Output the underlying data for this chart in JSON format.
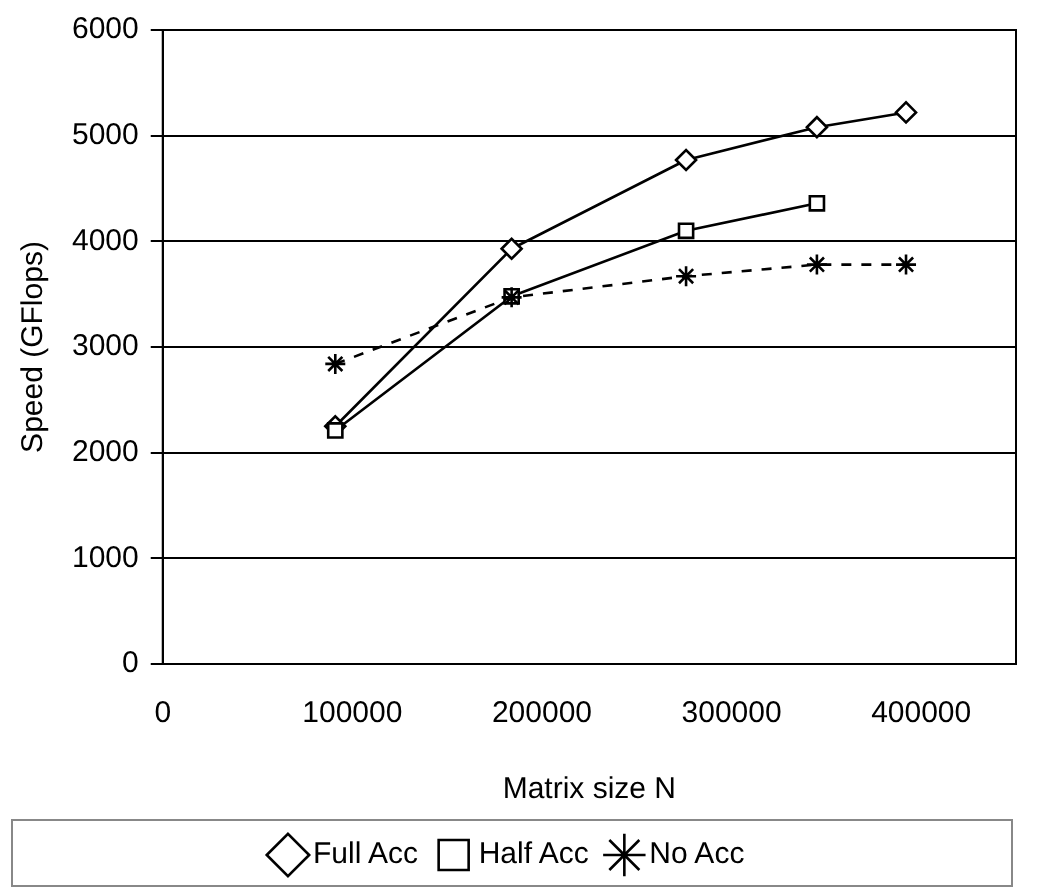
{
  "chart_data": {
    "type": "line",
    "xlabel": "Matrix size N",
    "ylabel": "Speed (GFlops)",
    "xlim": [
      0,
      450000
    ],
    "xticks": [
      0,
      100000,
      200000,
      300000,
      400000
    ],
    "ylim": [
      0,
      6000
    ],
    "yticks": [
      0,
      1000,
      2000,
      3000,
      4000,
      5000,
      6000
    ],
    "grid": "y",
    "legend": "bottom",
    "series": [
      {
        "name": "Full Acc",
        "color": "#000000",
        "marker": "diamond",
        "line_style": "solid",
        "x": [
          91000,
          184000,
          276000,
          345000,
          392000
        ],
        "values": [
          2250,
          3930,
          4770,
          5080,
          5220
        ]
      },
      {
        "name": "Half Acc",
        "color": "#000000",
        "marker": "square",
        "line_style": "solid",
        "x": [
          91000,
          184000,
          276000,
          345000
        ],
        "values": [
          2210,
          3480,
          4100,
          4360
        ]
      },
      {
        "name": "No Acc",
        "color": "#000000",
        "marker": "cross",
        "line_style": "dashed",
        "x": [
          91000,
          184000,
          276000,
          345000,
          392000
        ],
        "values": [
          2840,
          3470,
          3670,
          3780,
          3780
        ]
      }
    ]
  }
}
